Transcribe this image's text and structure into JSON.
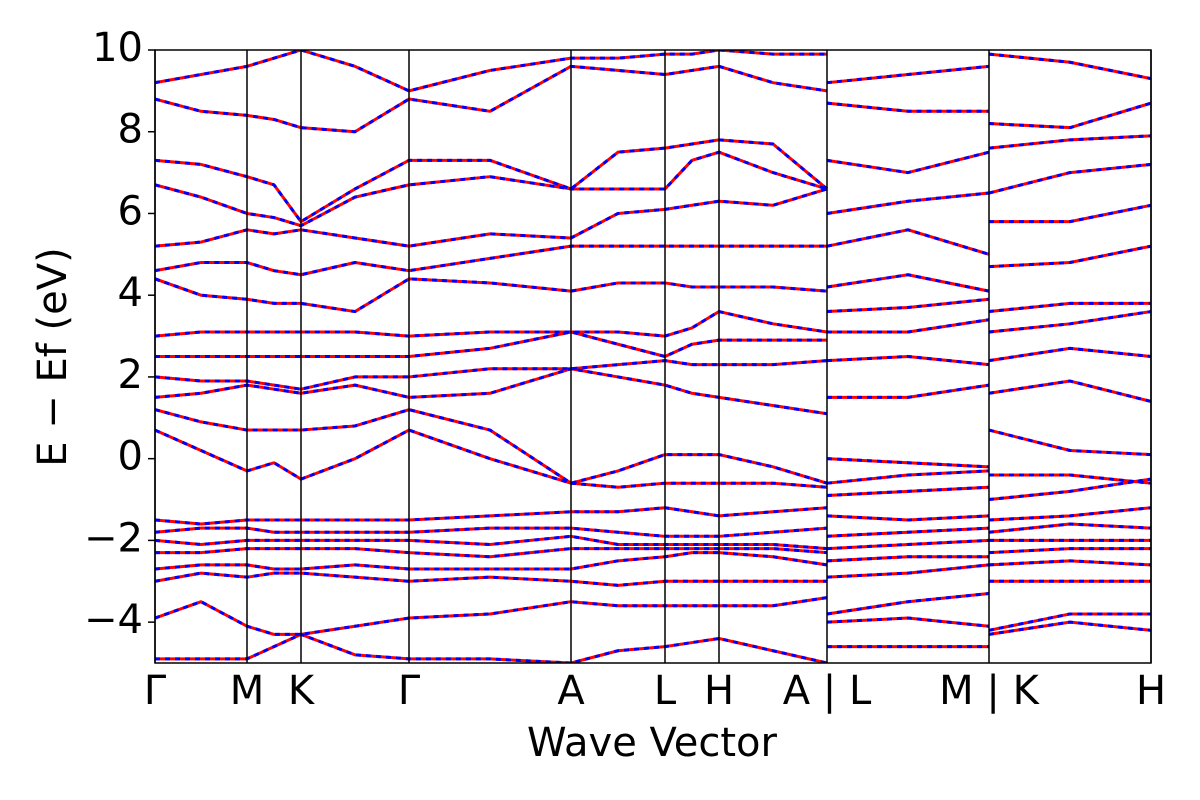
{
  "chart_data": {
    "type": "line",
    "xlabel": "Wave Vector",
    "ylabel": "E − Ef (eV)",
    "x": [
      0,
      0.46,
      0.92,
      1.19,
      1.46,
      2.0,
      2.54,
      3.35,
      4.16,
      4.63,
      5.1,
      5.37,
      5.64,
      6.18,
      6.72,
      6.72,
      6.72,
      7.53,
      8.34,
      8.34,
      8.34,
      9.15,
      9.96
    ],
    "xlim": [
      0,
      9.96
    ],
    "xticks": [
      {
        "value": 0,
        "label": "Γ"
      },
      {
        "value": 0.92,
        "label": "M"
      },
      {
        "value": 1.46,
        "label": "K"
      },
      {
        "value": 2.54,
        "label": "Γ"
      },
      {
        "value": 4.16,
        "label": "A"
      },
      {
        "value": 5.1,
        "label": "L"
      },
      {
        "value": 5.64,
        "label": "H"
      },
      {
        "value": 6.72,
        "label": "A | L"
      },
      {
        "value": 8.34,
        "label": "M | K"
      },
      {
        "value": 9.96,
        "label": "H"
      }
    ],
    "ylim": [
      -5,
      10
    ],
    "yticks": [
      {
        "value": -4,
        "label": "−4"
      },
      {
        "value": -2,
        "label": "−2"
      },
      0,
      2,
      4,
      6,
      8,
      10
    ],
    "series": [
      {
        "color": "#ff0000",
        "style": "solid",
        "bands": [
          [
            -4.9,
            -4.9,
            -4.9,
            -4.6,
            -4.3,
            -4.8,
            -4.9,
            -4.9,
            -5.0,
            -4.7,
            -4.6,
            -4.5,
            -4.4,
            -4.7,
            -5.0,
            null,
            -4.6,
            -4.6,
            -4.6,
            null,
            -4.3,
            -4.0,
            -4.2
          ],
          [
            -3.9,
            -3.5,
            -4.1,
            -4.3,
            -4.3,
            -4.1,
            -3.9,
            -3.8,
            -3.5,
            -3.6,
            -3.6,
            -3.6,
            -3.6,
            -3.6,
            -3.4,
            null,
            -4.0,
            -3.9,
            -4.1,
            null,
            -4.2,
            -3.8,
            -3.8
          ],
          [
            -3.0,
            -2.8,
            -2.9,
            -2.8,
            -2.8,
            -2.9,
            -3.0,
            -2.9,
            -3.0,
            -3.1,
            -3.0,
            -3.0,
            -3.0,
            -3.0,
            -3.0,
            null,
            -3.8,
            -3.5,
            -3.3,
            null,
            -3.0,
            -3.0,
            -3.0
          ],
          [
            -2.7,
            -2.6,
            -2.6,
            -2.7,
            -2.7,
            -2.6,
            -2.7,
            -2.7,
            -2.7,
            -2.5,
            -2.4,
            -2.3,
            -2.3,
            -2.4,
            -2.6,
            null,
            -2.9,
            -2.8,
            -2.6,
            null,
            -2.6,
            -2.5,
            -2.6
          ],
          [
            -2.3,
            -2.3,
            -2.2,
            -2.2,
            -2.2,
            -2.2,
            -2.3,
            -2.4,
            -2.2,
            -2.2,
            -2.2,
            -2.2,
            -2.2,
            -2.2,
            -2.3,
            null,
            -2.5,
            -2.4,
            -2.4,
            null,
            -2.3,
            -2.2,
            -2.2
          ],
          [
            -2.0,
            -2.1,
            -2.0,
            -2.0,
            -2.0,
            -2.0,
            -2.0,
            -2.1,
            -1.9,
            -2.1,
            -2.1,
            -2.1,
            -2.1,
            -2.1,
            -2.2,
            null,
            -2.2,
            -2.1,
            -2.0,
            null,
            -2.0,
            -2.0,
            -2.0
          ],
          [
            -1.8,
            -1.7,
            -1.7,
            -1.8,
            -1.8,
            -1.8,
            -1.8,
            -1.7,
            -1.7,
            -1.8,
            -1.9,
            -1.9,
            -1.9,
            -1.8,
            -1.7,
            null,
            -1.9,
            -1.8,
            -1.7,
            null,
            -1.8,
            -1.6,
            -1.7
          ],
          [
            -1.5,
            -1.6,
            -1.5,
            -1.5,
            -1.5,
            -1.5,
            -1.5,
            -1.4,
            -1.3,
            -1.3,
            -1.2,
            -1.3,
            -1.4,
            -1.3,
            -1.2,
            null,
            -1.4,
            -1.5,
            -1.4,
            null,
            -1.5,
            -1.4,
            -1.2
          ],
          [
            0.7,
            0.2,
            -0.3,
            -0.1,
            -0.5,
            0.0,
            0.7,
            0.0,
            -0.6,
            -0.7,
            -0.6,
            -0.6,
            -0.6,
            -0.6,
            -0.7,
            null,
            -0.9,
            -0.8,
            -0.7,
            null,
            -1.0,
            -0.8,
            -0.5
          ],
          [
            1.2,
            0.9,
            0.7,
            0.7,
            0.7,
            0.8,
            1.2,
            0.7,
            -0.6,
            -0.3,
            0.1,
            0.1,
            0.1,
            -0.2,
            -0.6,
            null,
            -0.6,
            -0.4,
            -0.3,
            null,
            -0.4,
            -0.4,
            -0.6
          ],
          [
            1.5,
            1.6,
            1.8,
            1.7,
            1.6,
            1.8,
            1.5,
            1.6,
            2.2,
            2.0,
            1.8,
            1.6,
            1.5,
            1.3,
            1.1,
            null,
            0.0,
            -0.1,
            -0.2,
            null,
            0.7,
            0.2,
            0.1
          ],
          [
            2.0,
            1.9,
            1.9,
            1.8,
            1.7,
            2.0,
            2.0,
            2.2,
            2.2,
            2.3,
            2.4,
            2.3,
            2.3,
            2.3,
            2.4,
            null,
            1.5,
            1.5,
            1.8,
            null,
            1.6,
            1.9,
            1.4
          ],
          [
            2.5,
            2.5,
            2.5,
            2.5,
            2.5,
            2.5,
            2.5,
            2.7,
            3.1,
            2.8,
            2.5,
            2.8,
            2.9,
            2.9,
            2.9,
            null,
            2.4,
            2.5,
            2.3,
            null,
            2.4,
            2.7,
            2.5
          ],
          [
            3.0,
            3.1,
            3.1,
            3.1,
            3.1,
            3.1,
            3.0,
            3.1,
            3.1,
            3.1,
            3.0,
            3.2,
            3.6,
            3.3,
            3.1,
            null,
            3.1,
            3.1,
            3.4,
            null,
            3.1,
            3.3,
            3.6
          ],
          [
            4.4,
            4.0,
            3.9,
            3.8,
            3.8,
            3.6,
            4.4,
            4.3,
            4.1,
            4.3,
            4.3,
            4.2,
            4.2,
            4.2,
            4.1,
            null,
            3.6,
            3.7,
            3.9,
            null,
            3.6,
            3.8,
            3.8
          ],
          [
            4.6,
            4.8,
            4.8,
            4.6,
            4.5,
            4.8,
            4.6,
            4.9,
            5.2,
            5.2,
            5.2,
            5.2,
            5.2,
            5.2,
            5.2,
            null,
            4.2,
            4.5,
            4.1,
            null,
            4.7,
            4.8,
            5.2
          ],
          [
            5.2,
            5.3,
            5.6,
            5.5,
            5.6,
            5.4,
            5.2,
            5.5,
            5.4,
            6.0,
            6.1,
            6.2,
            6.3,
            6.2,
            6.6,
            null,
            5.2,
            5.6,
            5.0,
            null,
            5.8,
            5.8,
            6.2
          ],
          [
            6.7,
            6.4,
            6.0,
            5.9,
            5.7,
            6.4,
            6.7,
            6.9,
            6.6,
            6.6,
            6.6,
            7.3,
            7.5,
            7.0,
            6.6,
            null,
            6.0,
            6.3,
            6.5,
            null,
            6.5,
            7.0,
            7.2
          ],
          [
            7.3,
            7.2,
            6.9,
            6.7,
            5.8,
            6.6,
            7.3,
            7.3,
            6.6,
            7.5,
            7.6,
            7.7,
            7.8,
            7.7,
            6.6,
            null,
            7.3,
            7.0,
            7.5,
            null,
            7.6,
            7.8,
            7.9
          ],
          [
            8.8,
            8.5,
            8.4,
            8.3,
            8.1,
            8.0,
            8.8,
            8.5,
            9.6,
            9.5,
            9.4,
            9.5,
            9.6,
            9.2,
            9.0,
            null,
            8.7,
            8.5,
            8.5,
            null,
            8.2,
            8.1,
            8.7
          ],
          [
            9.2,
            9.4,
            9.6,
            9.8,
            10.0,
            9.6,
            9.0,
            9.5,
            9.8,
            9.8,
            9.9,
            9.9,
            10.0,
            9.9,
            9.9,
            null,
            9.2,
            9.4,
            9.6,
            null,
            9.9,
            9.7,
            9.3
          ]
        ]
      },
      {
        "color": "#0000ff",
        "style": "dashed",
        "bands": [
          [
            -4.9,
            -4.9,
            -4.9,
            -4.6,
            -4.3,
            -4.8,
            -4.9,
            -4.9,
            -5.0,
            -4.7,
            -4.6,
            -4.5,
            -4.4,
            -4.7,
            -5.0,
            null,
            -4.6,
            -4.6,
            -4.6,
            null,
            -4.3,
            -4.0,
            -4.2
          ],
          [
            -3.9,
            -3.5,
            -4.1,
            -4.3,
            -4.3,
            -4.1,
            -3.9,
            -3.8,
            -3.5,
            -3.6,
            -3.6,
            -3.6,
            -3.6,
            -3.6,
            -3.4,
            null,
            -4.0,
            -3.9,
            -4.1,
            null,
            -4.2,
            -3.8,
            -3.8
          ],
          [
            -3.0,
            -2.8,
            -2.9,
            -2.8,
            -2.8,
            -2.9,
            -3.0,
            -2.9,
            -3.0,
            -3.1,
            -3.0,
            -3.0,
            -3.0,
            -3.0,
            -3.0,
            null,
            -3.8,
            -3.5,
            -3.3,
            null,
            -3.0,
            -3.0,
            -3.0
          ],
          [
            -2.7,
            -2.6,
            -2.6,
            -2.7,
            -2.7,
            -2.6,
            -2.7,
            -2.7,
            -2.7,
            -2.5,
            -2.4,
            -2.3,
            -2.3,
            -2.4,
            -2.6,
            null,
            -2.9,
            -2.8,
            -2.6,
            null,
            -2.6,
            -2.5,
            -2.6
          ],
          [
            -2.3,
            -2.3,
            -2.2,
            -2.2,
            -2.2,
            -2.2,
            -2.3,
            -2.4,
            -2.2,
            -2.2,
            -2.2,
            -2.2,
            -2.2,
            -2.2,
            -2.3,
            null,
            -2.5,
            -2.4,
            -2.4,
            null,
            -2.3,
            -2.2,
            -2.2
          ],
          [
            -2.0,
            -2.1,
            -2.0,
            -2.0,
            -2.0,
            -2.0,
            -2.0,
            -2.1,
            -1.9,
            -2.1,
            -2.1,
            -2.1,
            -2.1,
            -2.1,
            -2.2,
            null,
            -2.2,
            -2.1,
            -2.0,
            null,
            -2.0,
            -2.0,
            -2.0
          ],
          [
            -1.8,
            -1.7,
            -1.7,
            -1.8,
            -1.8,
            -1.8,
            -1.8,
            -1.7,
            -1.7,
            -1.8,
            -1.9,
            -1.9,
            -1.9,
            -1.8,
            -1.7,
            null,
            -1.9,
            -1.8,
            -1.7,
            null,
            -1.8,
            -1.6,
            -1.7
          ],
          [
            -1.5,
            -1.6,
            -1.5,
            -1.5,
            -1.5,
            -1.5,
            -1.5,
            -1.4,
            -1.3,
            -1.3,
            -1.2,
            -1.3,
            -1.4,
            -1.3,
            -1.2,
            null,
            -1.4,
            -1.5,
            -1.4,
            null,
            -1.5,
            -1.4,
            -1.2
          ],
          [
            0.7,
            0.2,
            -0.3,
            -0.1,
            -0.5,
            0.0,
            0.7,
            0.0,
            -0.6,
            -0.7,
            -0.6,
            -0.6,
            -0.6,
            -0.6,
            -0.7,
            null,
            -0.9,
            -0.8,
            -0.7,
            null,
            -1.0,
            -0.8,
            -0.5
          ],
          [
            1.2,
            0.9,
            0.7,
            0.7,
            0.7,
            0.8,
            1.2,
            0.7,
            -0.6,
            -0.3,
            0.1,
            0.1,
            0.1,
            -0.2,
            -0.6,
            null,
            -0.6,
            -0.4,
            -0.3,
            null,
            -0.4,
            -0.4,
            -0.6
          ],
          [
            1.5,
            1.6,
            1.8,
            1.7,
            1.6,
            1.8,
            1.5,
            1.6,
            2.2,
            2.0,
            1.8,
            1.6,
            1.5,
            1.3,
            1.1,
            null,
            0.0,
            -0.1,
            -0.2,
            null,
            0.7,
            0.2,
            0.1
          ],
          [
            2.0,
            1.9,
            1.9,
            1.8,
            1.7,
            2.0,
            2.0,
            2.2,
            2.2,
            2.3,
            2.4,
            2.3,
            2.3,
            2.3,
            2.4,
            null,
            1.5,
            1.5,
            1.8,
            null,
            1.6,
            1.9,
            1.4
          ],
          [
            2.5,
            2.5,
            2.5,
            2.5,
            2.5,
            2.5,
            2.5,
            2.7,
            3.1,
            2.8,
            2.5,
            2.8,
            2.9,
            2.9,
            2.9,
            null,
            2.4,
            2.5,
            2.3,
            null,
            2.4,
            2.7,
            2.5
          ],
          [
            3.0,
            3.1,
            3.1,
            3.1,
            3.1,
            3.1,
            3.0,
            3.1,
            3.1,
            3.1,
            3.0,
            3.2,
            3.6,
            3.3,
            3.1,
            null,
            3.1,
            3.1,
            3.4,
            null,
            3.1,
            3.3,
            3.6
          ],
          [
            4.4,
            4.0,
            3.9,
            3.8,
            3.8,
            3.6,
            4.4,
            4.3,
            4.1,
            4.3,
            4.3,
            4.2,
            4.2,
            4.2,
            4.1,
            null,
            3.6,
            3.7,
            3.9,
            null,
            3.6,
            3.8,
            3.8
          ],
          [
            4.6,
            4.8,
            4.8,
            4.6,
            4.5,
            4.8,
            4.6,
            4.9,
            5.2,
            5.2,
            5.2,
            5.2,
            5.2,
            5.2,
            5.2,
            null,
            4.2,
            4.5,
            4.1,
            null,
            4.7,
            4.8,
            5.2
          ],
          [
            5.2,
            5.3,
            5.6,
            5.5,
            5.6,
            5.4,
            5.2,
            5.5,
            5.4,
            6.0,
            6.1,
            6.2,
            6.3,
            6.2,
            6.6,
            null,
            5.2,
            5.6,
            5.0,
            null,
            5.8,
            5.8,
            6.2
          ],
          [
            6.7,
            6.4,
            6.0,
            5.9,
            5.7,
            6.4,
            6.7,
            6.9,
            6.6,
            6.6,
            6.6,
            7.3,
            7.5,
            7.0,
            6.6,
            null,
            6.0,
            6.3,
            6.5,
            null,
            6.5,
            7.0,
            7.2
          ],
          [
            7.3,
            7.2,
            6.9,
            6.7,
            5.8,
            6.6,
            7.3,
            7.3,
            6.6,
            7.5,
            7.6,
            7.7,
            7.8,
            7.7,
            6.6,
            null,
            7.3,
            7.0,
            7.5,
            null,
            7.6,
            7.8,
            7.9
          ],
          [
            8.8,
            8.5,
            8.4,
            8.3,
            8.1,
            8.0,
            8.8,
            8.5,
            9.6,
            9.5,
            9.4,
            9.5,
            9.6,
            9.2,
            9.0,
            null,
            8.7,
            8.5,
            8.5,
            null,
            8.2,
            8.1,
            8.7
          ],
          [
            9.2,
            9.4,
            9.6,
            9.8,
            10.0,
            9.6,
            9.0,
            9.5,
            9.8,
            9.8,
            9.9,
            9.9,
            10.0,
            9.9,
            9.9,
            null,
            9.2,
            9.4,
            9.6,
            null,
            9.9,
            9.7,
            9.3
          ]
        ]
      }
    ]
  }
}
